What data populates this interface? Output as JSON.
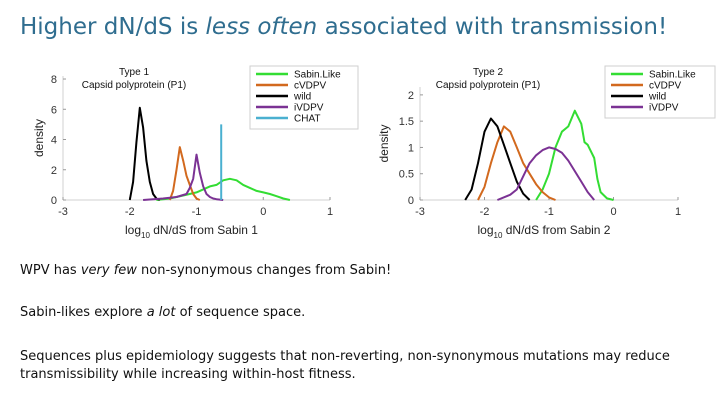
{
  "slide": {
    "title_pre": "Higher dN/dS is ",
    "title_em": "less often",
    "title_post": " associated with transmission!"
  },
  "notes": [
    {
      "pre": "WPV has ",
      "em": "very few",
      "post": " non-synonymous changes from Sabin!"
    },
    {
      "pre": "Sabin-likes explore ",
      "em": "a lot",
      "post": " of sequence space."
    },
    {
      "pre": "Sequences plus epidemiology suggests that non-reverting, non-synonymous mutations may reduce transmissibility while increasing within-host fitness.",
      "em": "",
      "post": ""
    }
  ],
  "colors": {
    "sabin_like": "#33dd33",
    "cvdpv": "#d2691e",
    "wild": "#000000",
    "ivdpv": "#7b3294",
    "chat": "#4ab0d0"
  },
  "chart_data": [
    {
      "type": "line",
      "title": "Type 1",
      "subtitle": "Capsid polyprotein (P1)",
      "xlabel_pre": "log",
      "xlabel_sub": "10",
      "xlabel_post": " dN/dS from Sabin 1",
      "ylabel": "density",
      "xlim": [
        -3,
        1
      ],
      "ylim": [
        0,
        8.2
      ],
      "xticks": [
        -3,
        -2,
        -1,
        0,
        1
      ],
      "yticks": [
        0,
        2,
        4,
        6,
        8
      ],
      "legend": [
        "Sabin.Like",
        "cVDPV",
        "wild",
        "iVDPV",
        "CHAT"
      ],
      "series": [
        {
          "name": "Sabin.Like",
          "color_key": "sabin_like",
          "x": [
            -1.6,
            -1.4,
            -1.2,
            -1.0,
            -0.9,
            -0.8,
            -0.7,
            -0.6,
            -0.5,
            -0.4,
            -0.3,
            -0.2,
            -0.1,
            0.0,
            0.1,
            0.2,
            0.3,
            0.4
          ],
          "y": [
            0,
            0.1,
            0.3,
            0.5,
            0.7,
            0.9,
            1.0,
            1.3,
            1.4,
            1.3,
            1.0,
            0.8,
            0.6,
            0.5,
            0.4,
            0.25,
            0.1,
            0
          ]
        },
        {
          "name": "cVDPV",
          "color_key": "cvdpv",
          "x": [
            -1.4,
            -1.35,
            -1.3,
            -1.25,
            -1.2,
            -1.15,
            -1.1,
            -1.05,
            -1.0,
            -0.95
          ],
          "y": [
            0,
            0.6,
            2.0,
            3.5,
            2.6,
            1.6,
            1.0,
            0.4,
            0.1,
            0
          ]
        },
        {
          "name": "wild",
          "color_key": "wild",
          "x": [
            -2.0,
            -1.95,
            -1.9,
            -1.85,
            -1.8,
            -1.75,
            -1.7,
            -1.65,
            -1.6,
            -1.55
          ],
          "y": [
            0,
            1.2,
            3.8,
            6.1,
            4.8,
            2.6,
            1.2,
            0.4,
            0.1,
            0
          ]
        },
        {
          "name": "iVDPV",
          "color_key": "ivdpv",
          "x": [
            -1.8,
            -1.5,
            -1.3,
            -1.15,
            -1.1,
            -1.05,
            -1.0,
            -0.95,
            -0.9,
            -0.85,
            -0.8,
            -0.75,
            -0.7,
            -0.6
          ],
          "y": [
            0,
            0.1,
            0.2,
            0.4,
            0.8,
            1.4,
            3.0,
            1.8,
            0.9,
            0.4,
            0.2,
            0.1,
            0.05,
            0
          ]
        },
        {
          "name": "CHAT",
          "color_key": "chat",
          "x": [
            -0.63,
            -0.63
          ],
          "y": [
            0,
            5.0
          ]
        }
      ]
    },
    {
      "type": "line",
      "title": "Type 2",
      "subtitle": "Capsid polyprotein (P1)",
      "xlabel_pre": "log",
      "xlabel_sub": "10",
      "xlabel_post": " dN/dS from Sabin 2",
      "ylabel": "density",
      "xlim": [
        -3,
        1
      ],
      "ylim": [
        0,
        2.15
      ],
      "xticks": [
        -3,
        -2,
        -1,
        0,
        1
      ],
      "yticks": [
        0,
        0.5,
        1,
        1.5,
        2
      ],
      "legend": [
        "Sabin.Like",
        "cVDPV",
        "wild",
        "iVDPV"
      ],
      "series": [
        {
          "name": "Sabin.Like",
          "color_key": "sabin_like",
          "x": [
            -1.2,
            -1.1,
            -1.0,
            -0.9,
            -0.8,
            -0.7,
            -0.6,
            -0.5,
            -0.45,
            -0.4,
            -0.3,
            -0.25,
            -0.2,
            -0.1,
            0.0
          ],
          "y": [
            0,
            0.2,
            0.5,
            1.0,
            1.3,
            1.4,
            1.7,
            1.45,
            1.1,
            1.05,
            0.8,
            0.4,
            0.15,
            0.03,
            0
          ]
        },
        {
          "name": "cVDPV",
          "color_key": "cvdpv",
          "x": [
            -2.1,
            -2.0,
            -1.9,
            -1.8,
            -1.7,
            -1.6,
            -1.5,
            -1.4,
            -1.3,
            -1.2,
            -1.1,
            -1.0,
            -0.9
          ],
          "y": [
            0,
            0.25,
            0.7,
            1.1,
            1.4,
            1.3,
            1.0,
            0.7,
            0.5,
            0.3,
            0.15,
            0.05,
            0
          ]
        },
        {
          "name": "wild",
          "color_key": "wild",
          "x": [
            -2.3,
            -2.2,
            -2.1,
            -2.0,
            -1.9,
            -1.8,
            -1.7,
            -1.6,
            -1.5,
            -1.4,
            -1.3
          ],
          "y": [
            0,
            0.2,
            0.7,
            1.3,
            1.55,
            1.4,
            1.05,
            0.7,
            0.35,
            0.12,
            0
          ]
        },
        {
          "name": "iVDPV",
          "color_key": "ivdpv",
          "x": [
            -1.8,
            -1.6,
            -1.5,
            -1.4,
            -1.3,
            -1.2,
            -1.1,
            -1.0,
            -0.9,
            -0.8,
            -0.7,
            -0.6,
            -0.5,
            -0.4,
            -0.3
          ],
          "y": [
            0,
            0.1,
            0.2,
            0.45,
            0.7,
            0.85,
            0.95,
            1.0,
            0.97,
            0.9,
            0.75,
            0.55,
            0.35,
            0.15,
            0
          ]
        }
      ]
    }
  ]
}
